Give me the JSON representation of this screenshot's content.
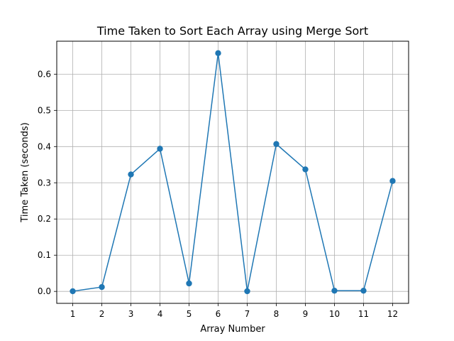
{
  "chart_data": {
    "type": "line",
    "title": "Time Taken to Sort Each Array using Merge Sort",
    "xlabel": "Array Number",
    "ylabel": "Time Taken (seconds)",
    "x": [
      1,
      2,
      3,
      4,
      5,
      6,
      7,
      8,
      9,
      10,
      11,
      12
    ],
    "x_tick_labels": [
      "1",
      "2",
      "3",
      "4",
      "5",
      "6",
      "7",
      "8",
      "9",
      "10",
      "11",
      "12"
    ],
    "y_tick_labels": [
      "0.0",
      "0.1",
      "0.2",
      "0.3",
      "0.4",
      "0.5",
      "0.6"
    ],
    "y_ticks": [
      0.0,
      0.1,
      0.2,
      0.3,
      0.4,
      0.5,
      0.6
    ],
    "series": [
      {
        "values": [
          0.0005,
          0.012,
          0.323,
          0.394,
          0.022,
          0.658,
          0.0005,
          0.407,
          0.337,
          0.002,
          0.002,
          0.305
        ],
        "color": "#1f77b4",
        "marker": "circle"
      }
    ],
    "xlim": [
      0.45,
      12.55
    ],
    "ylim": [
      -0.033,
      0.691
    ],
    "grid": true,
    "line_color": "#1f77b4",
    "grid_color": "#b0b0b0"
  }
}
